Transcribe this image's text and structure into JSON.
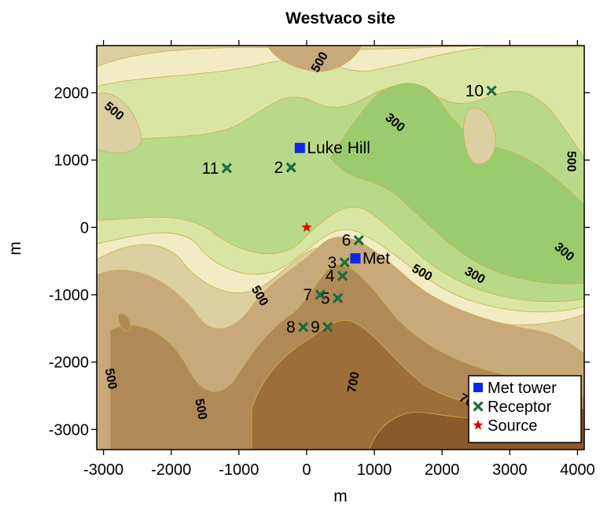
{
  "title": "Westvaco site",
  "xlabel": "m",
  "ylabel": "m",
  "colors": {
    "band_700_plus": "#8a5a2b",
    "band_650": "#9c6e3a",
    "band_600": "#b08a56",
    "band_550": "#c7a97a",
    "band_500": "#dccfa2",
    "band_450": "#f1ecc3",
    "band_400": "#d9e6a3",
    "band_350": "#b9d98a",
    "band_300": "#9ccb6f",
    "contour_line": "#c9b24a",
    "met_tower": "#0a28e6",
    "receptor": "#1d6b3a",
    "source": "#e60000"
  },
  "chart_data": {
    "type": "contour-map",
    "xlim": [
      -3100,
      4100
    ],
    "ylim": [
      -3300,
      2700
    ],
    "x_ticks": [
      -3000,
      -2000,
      -1000,
      0,
      1000,
      2000,
      3000,
      4000
    ],
    "y_ticks": [
      2000,
      1000,
      0,
      -1000,
      -2000,
      -3000
    ],
    "x_tick_labels": [
      "-3000",
      "-2000",
      "-1000",
      "0",
      "1000",
      "2000",
      "3000",
      "4000"
    ],
    "y_tick_labels": [
      "2000",
      "1000",
      "0",
      "-1000",
      "-2000",
      "-3000"
    ],
    "contour_labels": [
      {
        "text": "500",
        "x": 200,
        "y": 2450,
        "angle": -60
      },
      {
        "text": "500",
        "x": -2850,
        "y": 1720,
        "angle": 40
      },
      {
        "text": "300",
        "x": 1300,
        "y": 1550,
        "angle": 40
      },
      {
        "text": "500",
        "x": 3900,
        "y": 980,
        "angle": 90
      },
      {
        "text": "300",
        "x": 3800,
        "y": -370,
        "angle": 40
      },
      {
        "text": "300",
        "x": 2480,
        "y": -720,
        "angle": 30
      },
      {
        "text": "500",
        "x": 1700,
        "y": -680,
        "angle": 30
      },
      {
        "text": "500",
        "x": -700,
        "y": -1020,
        "angle": 60
      },
      {
        "text": "500",
        "x": -2900,
        "y": -2250,
        "angle": 80
      },
      {
        "text": "500",
        "x": -1570,
        "y": -2700,
        "angle": 80
      },
      {
        "text": "700",
        "x": 700,
        "y": -2300,
        "angle": -80
      },
      {
        "text": "700",
        "x": 2400,
        "y": -2600,
        "angle": 30
      }
    ],
    "met_towers": [
      {
        "name": "Luke Hill",
        "x": -100,
        "y": 1180
      },
      {
        "name": "Met",
        "x": 720,
        "y": -460
      }
    ],
    "receptors": [
      {
        "label": "2",
        "x": -230,
        "y": 890
      },
      {
        "label": "3",
        "x": 560,
        "y": -520
      },
      {
        "label": "4",
        "x": 530,
        "y": -720
      },
      {
        "label": "5",
        "x": 460,
        "y": -1050
      },
      {
        "label": "6",
        "x": 770,
        "y": -190
      },
      {
        "label": "7",
        "x": 200,
        "y": -1000
      },
      {
        "label": "8",
        "x": -50,
        "y": -1480
      },
      {
        "label": "9",
        "x": 310,
        "y": -1480
      },
      {
        "label": "10",
        "x": 2730,
        "y": 2030
      },
      {
        "label": "11",
        "x": -1180,
        "y": 880
      }
    ],
    "source": {
      "x": 0,
      "y": 0
    },
    "legend": {
      "position": "bottom-right",
      "entries": [
        {
          "label": "Met tower",
          "symbol": "square"
        },
        {
          "label": "Receptor",
          "symbol": "x"
        },
        {
          "label": "Source",
          "symbol": "star"
        }
      ]
    }
  }
}
